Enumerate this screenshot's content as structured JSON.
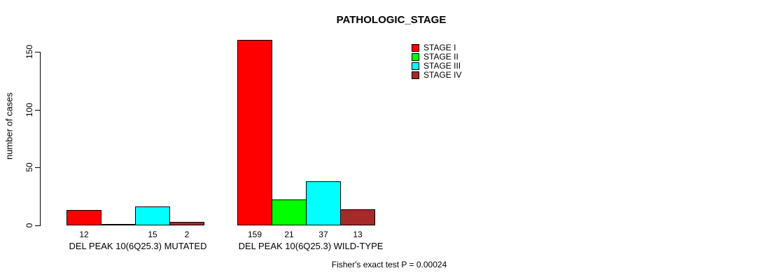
{
  "chart_data": {
    "type": "bar",
    "title": "PATHOLOGIC_STAGE",
    "ylabel": "number of cases",
    "yticks": [
      0,
      50,
      100,
      150
    ],
    "ylim": [
      0,
      150
    ],
    "grid": false,
    "legend_position": "top-right",
    "categories": [
      "DEL PEAK 10(6Q25.3) MUTATED",
      "DEL PEAK 10(6Q25.3) WILD-TYPE"
    ],
    "series": [
      {
        "name": "STAGE I",
        "color": "#FF0000",
        "values": [
          12,
          159
        ]
      },
      {
        "name": "STAGE II",
        "color": "#00FF00",
        "values": [
          0,
          21
        ]
      },
      {
        "name": "STAGE III",
        "color": "#00FFFF",
        "values": [
          15,
          37
        ]
      },
      {
        "name": "STAGE IV",
        "color": "#A52A2A",
        "values": [
          2,
          13
        ]
      }
    ],
    "bar_labels": [
      [
        "12",
        "",
        "15",
        "2"
      ],
      [
        "159",
        "21",
        "37",
        "13"
      ]
    ],
    "annotation": "Fisher's exact test P = 0.00024"
  }
}
